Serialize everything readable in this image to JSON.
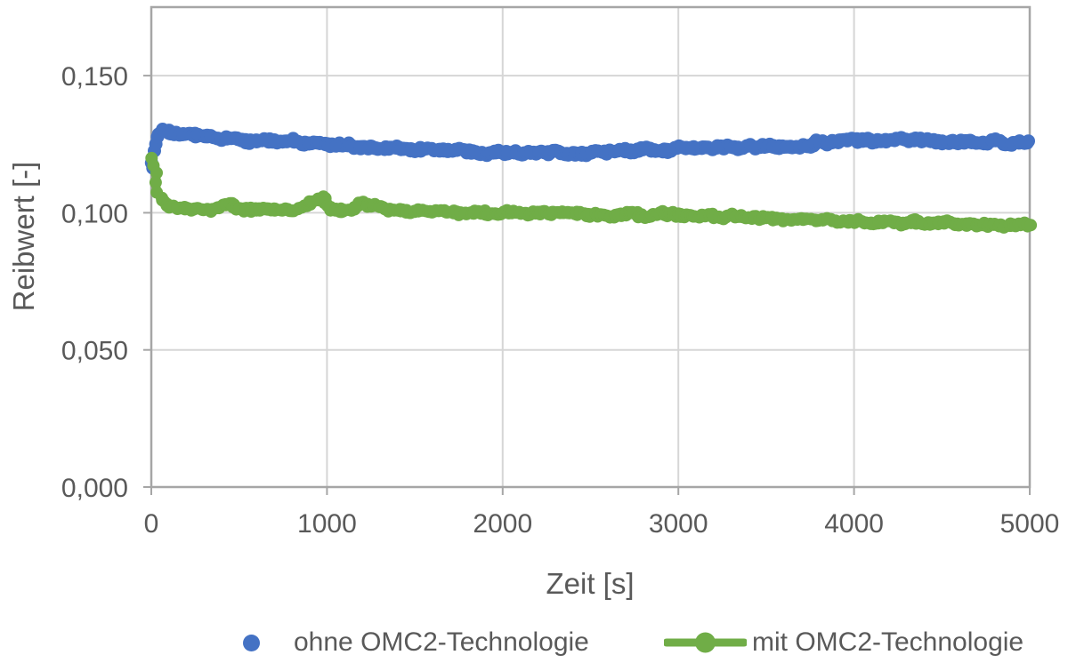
{
  "chart_data": {
    "type": "scatter",
    "title": "",
    "xlabel": "Zeit [s]",
    "ylabel": "Reibwert [-]",
    "xlim": [
      0,
      5000
    ],
    "ylim": [
      0,
      0.175
    ],
    "grid": true,
    "legend_position": "bottom",
    "decimal_separator": ",",
    "x_tick_values": [
      0,
      1000,
      2000,
      3000,
      4000,
      5000
    ],
    "x_tick_labels": [
      "0",
      "1000",
      "2000",
      "3000",
      "4000",
      "5000"
    ],
    "y_tick_values": [
      0,
      0.05,
      0.1,
      0.15
    ],
    "y_tick_labels": [
      "0,000",
      "0,050",
      "0,100",
      "0,150"
    ],
    "series": [
      {
        "name": "ohne OMC2-Technologie",
        "color": "#4472C4",
        "marker": "circle",
        "line": false,
        "points": [
          [
            0,
            0.1165
          ],
          [
            10,
            0.1185
          ],
          [
            25,
            0.1245
          ],
          [
            45,
            0.1285
          ],
          [
            70,
            0.1293
          ],
          [
            110,
            0.129
          ],
          [
            160,
            0.1285
          ],
          [
            250,
            0.1279
          ],
          [
            400,
            0.1272
          ],
          [
            600,
            0.1264
          ],
          [
            800,
            0.1257
          ],
          [
            1000,
            0.1249
          ],
          [
            1200,
            0.124
          ],
          [
            1400,
            0.1233
          ],
          [
            1700,
            0.1227
          ],
          [
            2000,
            0.1223
          ],
          [
            2300,
            0.1221
          ],
          [
            2600,
            0.1223
          ],
          [
            2900,
            0.1229
          ],
          [
            3200,
            0.1236
          ],
          [
            3500,
            0.1241
          ],
          [
            3750,
            0.1245
          ],
          [
            3800,
            0.1259
          ],
          [
            4000,
            0.1263
          ],
          [
            4300,
            0.1262
          ],
          [
            4600,
            0.1259
          ],
          [
            5000,
            0.1255
          ]
        ]
      },
      {
        "name": "mit OMC2-Technologie",
        "color": "#70AD47",
        "marker": "circle",
        "line": true,
        "points": [
          [
            0,
            0.1205
          ],
          [
            15,
            0.1158
          ],
          [
            30,
            0.1108
          ],
          [
            50,
            0.1062
          ],
          [
            80,
            0.1035
          ],
          [
            120,
            0.1021
          ],
          [
            200,
            0.1012
          ],
          [
            300,
            0.1008
          ],
          [
            400,
            0.1022
          ],
          [
            450,
            0.1032
          ],
          [
            500,
            0.1012
          ],
          [
            600,
            0.1006
          ],
          [
            800,
            0.1008
          ],
          [
            930,
            0.1042
          ],
          [
            975,
            0.1052
          ],
          [
            1030,
            0.1015
          ],
          [
            1100,
            0.1008
          ],
          [
            1200,
            0.103
          ],
          [
            1270,
            0.1032
          ],
          [
            1340,
            0.1008
          ],
          [
            1500,
            0.1005
          ],
          [
            1800,
            0.1002
          ],
          [
            2100,
            0.0999
          ],
          [
            2400,
            0.0996
          ],
          [
            2700,
            0.0993
          ],
          [
            3000,
            0.099
          ],
          [
            3300,
            0.0985
          ],
          [
            3600,
            0.0979
          ],
          [
            3900,
            0.0972
          ],
          [
            4200,
            0.0967
          ],
          [
            4500,
            0.0962
          ],
          [
            4800,
            0.0958
          ],
          [
            5000,
            0.0955
          ]
        ]
      }
    ]
  },
  "colors": {
    "series_blue": "#4472C4",
    "series_green": "#70AD47",
    "gridline": "#D6D6D6",
    "plot_border": "#A6A6A6",
    "label_text": "#595959"
  }
}
